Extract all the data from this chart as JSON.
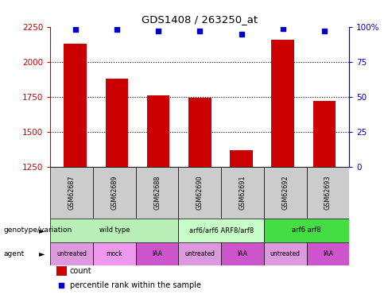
{
  "title": "GDS1408 / 263250_at",
  "samples": [
    "GSM62687",
    "GSM62689",
    "GSM62688",
    "GSM62690",
    "GSM62691",
    "GSM62692",
    "GSM62693"
  ],
  "bar_values": [
    2130,
    1880,
    1760,
    1740,
    1370,
    2160,
    1720
  ],
  "percentile_values": [
    98,
    98,
    97,
    97,
    95,
    99,
    97
  ],
  "bar_color": "#cc0000",
  "dot_color": "#0000cc",
  "ylim_left": [
    1250,
    2250
  ],
  "ylim_right": [
    0,
    100
  ],
  "yticks_left": [
    1250,
    1500,
    1750,
    2000,
    2250
  ],
  "yticks_right": [
    0,
    25,
    50,
    75,
    100
  ],
  "ytick_labels_right": [
    "0",
    "25",
    "50",
    "75",
    "100%"
  ],
  "dotted_lines": [
    2000,
    1750,
    1500
  ],
  "genotype_groups": [
    {
      "label": "wild type",
      "start": 0,
      "end": 3,
      "color": "#b8f0b8"
    },
    {
      "label": "arf6/arf6 ARF8/arf8",
      "start": 3,
      "end": 5,
      "color": "#c8ffc8"
    },
    {
      "label": "arf6 arf8",
      "start": 5,
      "end": 7,
      "color": "#44dd44"
    }
  ],
  "agent_labels": [
    "untreated",
    "mock",
    "IAA",
    "untreated",
    "IAA",
    "untreated",
    "IAA"
  ],
  "agent_colors": [
    "#dd99dd",
    "#ee99ee",
    "#cc55cc",
    "#dd99dd",
    "#cc55cc",
    "#dd99dd",
    "#cc55cc"
  ],
  "agent_row_label": "agent",
  "genotype_row_label": "genotype/variation",
  "legend_bar_label": "count",
  "legend_dot_label": "percentile rank within the sample",
  "background_color": "#ffffff",
  "label_area_color": "#cccccc",
  "figsize": [
    4.88,
    3.75
  ],
  "dpi": 100
}
